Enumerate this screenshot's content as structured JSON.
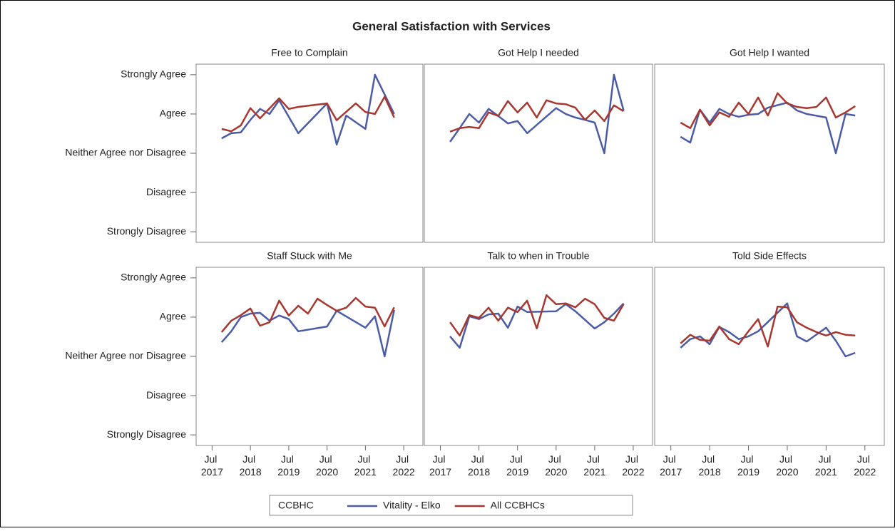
{
  "chart_data": {
    "type": "line",
    "title": "General Satisfaction with Services",
    "legend_title": "CCBHC",
    "ylim": [
      0.73,
      5.27
    ],
    "yticks": [
      {
        "value": 1,
        "label": "Strongly Disagree"
      },
      {
        "value": 2,
        "label": "Disagree"
      },
      {
        "value": 3,
        "label": "Neither Agree nor Disagree"
      },
      {
        "value": 4,
        "label": "Agree"
      },
      {
        "value": 5,
        "label": "Strongly Agree"
      }
    ],
    "xlim": [
      "2017-02",
      "2023-01"
    ],
    "xticks": [
      {
        "value": "2017-07",
        "label": "Jul 2017"
      },
      {
        "value": "2018-07",
        "label": "Jul 2018"
      },
      {
        "value": "2019-07",
        "label": "Jul 2019"
      },
      {
        "value": "2020-07",
        "label": "Jul 2020"
      },
      {
        "value": "2021-07",
        "label": "Jul 2021"
      },
      {
        "value": "2022-07",
        "label": "Jul 2022"
      }
    ],
    "panels": [
      {
        "title": "Free to Complain",
        "series": [
          {
            "name": "Vitality - Elko",
            "color": "#4b5ca6",
            "x": [
              "2017-10",
              "2018-01",
              "2018-04",
              "2018-07",
              "2018-10",
              "2019-01",
              "2019-04",
              "2019-10",
              "2020-07",
              "2020-10",
              "2021-01",
              "2021-07",
              "2021-10",
              "2022-04"
            ],
            "values": [
              3.38,
              3.51,
              3.53,
              3.85,
              4.13,
              4.0,
              4.35,
              3.51,
              4.27,
              3.22,
              3.96,
              3.62,
              5.0,
              4.0
            ]
          },
          {
            "name": "All CCBHCs",
            "color": "#a8372f",
            "x": [
              "2017-10",
              "2018-01",
              "2018-04",
              "2018-07",
              "2018-10",
              "2019-04",
              "2019-07",
              "2019-10",
              "2020-07",
              "2020-10",
              "2021-04",
              "2021-07",
              "2021-10",
              "2022-01",
              "2022-04"
            ],
            "values": [
              3.62,
              3.56,
              3.71,
              4.15,
              3.89,
              4.4,
              4.13,
              4.18,
              4.27,
              3.84,
              4.27,
              4.05,
              4.0,
              4.44,
              3.91
            ]
          }
        ]
      },
      {
        "title": "Got Help I needed",
        "series": [
          {
            "name": "Vitality - Elko",
            "color": "#4b5ca6",
            "x": [
              "2017-10",
              "2018-01",
              "2018-04",
              "2018-07",
              "2018-10",
              "2019-01",
              "2019-04",
              "2019-07",
              "2019-10",
              "2020-07",
              "2020-10",
              "2021-01",
              "2021-04",
              "2021-07",
              "2021-10",
              "2022-01",
              "2022-04"
            ],
            "values": [
              3.29,
              3.64,
              4.0,
              3.78,
              4.13,
              3.95,
              3.76,
              3.82,
              3.51,
              4.15,
              4.0,
              3.91,
              3.85,
              3.78,
              3.0,
              5.0,
              4.09
            ]
          },
          {
            "name": "All CCBHCs",
            "color": "#a8372f",
            "x": [
              "2017-10",
              "2018-01",
              "2018-04",
              "2018-07",
              "2018-10",
              "2019-01",
              "2019-04",
              "2019-07",
              "2019-10",
              "2020-01",
              "2020-04",
              "2020-07",
              "2020-10",
              "2021-01",
              "2021-04",
              "2021-07",
              "2021-10",
              "2022-01",
              "2022-04"
            ],
            "values": [
              3.55,
              3.64,
              3.67,
              3.64,
              4.04,
              3.95,
              4.33,
              4.04,
              4.29,
              3.91,
              4.35,
              4.27,
              4.25,
              4.16,
              3.85,
              4.09,
              3.82,
              4.22,
              4.07
            ]
          }
        ]
      },
      {
        "title": "Got Help I wanted",
        "series": [
          {
            "name": "Vitality - Elko",
            "color": "#4b5ca6",
            "x": [
              "2017-10",
              "2018-01",
              "2018-04",
              "2018-07",
              "2018-10",
              "2019-01",
              "2019-04",
              "2019-07",
              "2019-10",
              "2020-01",
              "2020-07",
              "2020-10",
              "2021-01",
              "2021-07",
              "2021-10",
              "2022-01",
              "2022-04"
            ],
            "values": [
              3.42,
              3.27,
              4.11,
              3.78,
              4.13,
              4.0,
              3.93,
              3.98,
              4.0,
              4.16,
              4.29,
              4.09,
              4.0,
              3.91,
              3.0,
              4.0,
              3.96
            ]
          },
          {
            "name": "All CCBHCs",
            "color": "#a8372f",
            "x": [
              "2017-10",
              "2018-01",
              "2018-04",
              "2018-07",
              "2018-10",
              "2019-01",
              "2019-04",
              "2019-07",
              "2019-10",
              "2020-01",
              "2020-04",
              "2020-07",
              "2020-10",
              "2021-01",
              "2021-04",
              "2021-07",
              "2021-10",
              "2022-01",
              "2022-04"
            ],
            "values": [
              3.78,
              3.64,
              4.11,
              3.71,
              4.04,
              3.93,
              4.29,
              4.0,
              4.42,
              3.96,
              4.53,
              4.27,
              4.18,
              4.15,
              4.18,
              4.42,
              3.91,
              4.04,
              4.2
            ]
          }
        ]
      },
      {
        "title": "Staff Stuck with Me",
        "series": [
          {
            "name": "Vitality - Elko",
            "color": "#4b5ca6",
            "x": [
              "2017-10",
              "2018-01",
              "2018-04",
              "2018-07",
              "2018-10",
              "2019-01",
              "2019-04",
              "2019-07",
              "2019-10",
              "2020-07",
              "2020-10",
              "2021-07",
              "2021-10",
              "2022-01",
              "2022-04"
            ],
            "values": [
              3.36,
              3.64,
              4.0,
              4.09,
              4.11,
              3.91,
              4.04,
              3.95,
              3.64,
              3.76,
              4.16,
              3.73,
              4.02,
              3.0,
              4.18
            ]
          },
          {
            "name": "All CCBHCs",
            "color": "#a8372f",
            "x": [
              "2017-10",
              "2018-01",
              "2018-04",
              "2018-07",
              "2018-10",
              "2019-01",
              "2019-04",
              "2019-07",
              "2019-10",
              "2020-01",
              "2020-04",
              "2020-07",
              "2020-10",
              "2021-01",
              "2021-04",
              "2021-07",
              "2021-10",
              "2022-01",
              "2022-04"
            ],
            "values": [
              3.62,
              3.91,
              4.05,
              4.22,
              3.78,
              3.87,
              4.42,
              4.04,
              4.29,
              4.09,
              4.47,
              4.31,
              4.16,
              4.24,
              4.49,
              4.27,
              4.24,
              3.76,
              4.25
            ]
          }
        ]
      },
      {
        "title": "Talk to when in Trouble",
        "series": [
          {
            "name": "Vitality - Elko",
            "color": "#4b5ca6",
            "x": [
              "2017-10",
              "2018-01",
              "2018-04",
              "2018-07",
              "2018-10",
              "2019-01",
              "2019-04",
              "2019-07",
              "2019-10",
              "2020-07",
              "2020-10",
              "2021-01",
              "2021-07",
              "2021-10",
              "2022-01",
              "2022-04"
            ],
            "values": [
              3.51,
              3.22,
              4.02,
              3.95,
              4.07,
              4.09,
              3.73,
              4.27,
              4.13,
              4.15,
              4.33,
              4.15,
              3.71,
              3.87,
              4.09,
              4.35
            ]
          },
          {
            "name": "All CCBHCs",
            "color": "#a8372f",
            "x": [
              "2017-10",
              "2018-01",
              "2018-04",
              "2018-07",
              "2018-10",
              "2019-01",
              "2019-04",
              "2019-07",
              "2019-10",
              "2020-01",
              "2020-04",
              "2020-07",
              "2020-10",
              "2021-01",
              "2021-04",
              "2021-07",
              "2021-10",
              "2022-01",
              "2022-04"
            ],
            "values": [
              3.87,
              3.53,
              4.05,
              3.98,
              4.24,
              3.91,
              4.24,
              4.13,
              4.42,
              3.71,
              4.56,
              4.33,
              4.35,
              4.25,
              4.47,
              4.33,
              3.98,
              3.91,
              4.33
            ]
          }
        ]
      },
      {
        "title": "Told Side Effects",
        "series": [
          {
            "name": "Vitality - Elko",
            "color": "#4b5ca6",
            "x": [
              "2017-10",
              "2018-01",
              "2018-04",
              "2018-07",
              "2018-10",
              "2019-01",
              "2019-04",
              "2019-07",
              "2019-10",
              "2020-07",
              "2020-10",
              "2021-01",
              "2021-07",
              "2021-10",
              "2022-01",
              "2022-04"
            ],
            "values": [
              3.22,
              3.44,
              3.51,
              3.31,
              3.75,
              3.62,
              3.44,
              3.51,
              3.64,
              4.35,
              3.51,
              3.38,
              3.73,
              3.4,
              3.0,
              3.09
            ]
          },
          {
            "name": "All CCBHCs",
            "color": "#a8372f",
            "x": [
              "2017-10",
              "2018-01",
              "2018-04",
              "2018-07",
              "2018-10",
              "2019-01",
              "2019-04",
              "2019-07",
              "2019-10",
              "2020-01",
              "2020-04",
              "2020-07",
              "2020-10",
              "2021-01",
              "2021-04",
              "2021-07",
              "2021-10",
              "2022-01",
              "2022-04"
            ],
            "values": [
              3.33,
              3.55,
              3.42,
              3.4,
              3.76,
              3.44,
              3.31,
              3.64,
              3.95,
              3.25,
              4.27,
              4.25,
              3.87,
              3.73,
              3.62,
              3.53,
              3.62,
              3.55,
              3.53
            ]
          }
        ]
      }
    ]
  }
}
